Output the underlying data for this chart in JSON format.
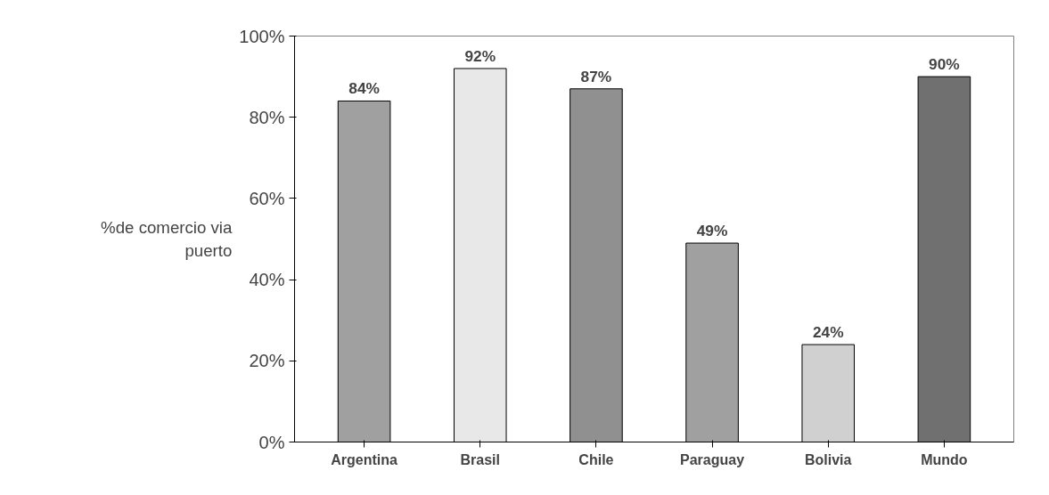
{
  "chart_data": {
    "type": "bar",
    "ylabel": "%de comercio via puerto",
    "categories": [
      "Argentina",
      "Brasil",
      "Chile",
      "Paraguay",
      "Bolivia",
      "Mundo"
    ],
    "values": [
      84,
      92,
      87,
      49,
      24,
      90
    ],
    "colors": [
      "#a0a0a0",
      "#e8e8e8",
      "#909090",
      "#a0a0a0",
      "#d0d0d0",
      "#707070"
    ],
    "value_labels": [
      "84%",
      "92%",
      "87%",
      "49%",
      "24%",
      "90%"
    ],
    "ylim": [
      0,
      100
    ],
    "yticks": [
      {
        "value": 0,
        "label": "0%"
      },
      {
        "value": 20,
        "label": "20%"
      },
      {
        "value": 40,
        "label": "40%"
      },
      {
        "value": 60,
        "label": "60%"
      },
      {
        "value": 80,
        "label": "80%"
      },
      {
        "value": 100,
        "label": "100%"
      }
    ],
    "grid": false
  }
}
